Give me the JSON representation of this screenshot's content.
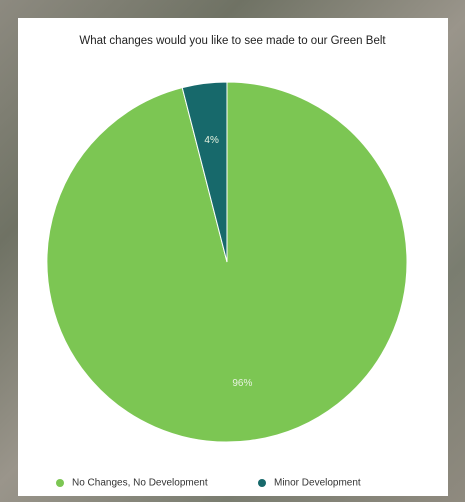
{
  "chart_data": {
    "type": "pie",
    "title": "What changes would you like to see made to our Green Belt",
    "categories": [
      "No Changes, No Development",
      "Minor Development"
    ],
    "values": [
      96,
      4
    ],
    "value_labels": [
      "96%",
      "4%"
    ],
    "colors": [
      "#7cc653",
      "#17696b"
    ],
    "legend": "bottom"
  }
}
